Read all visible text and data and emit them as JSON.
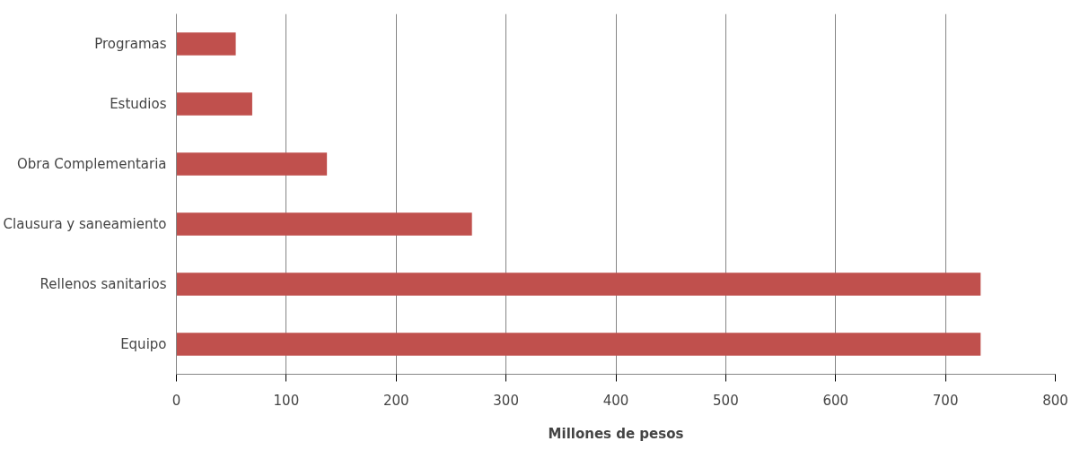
{
  "chart_data": {
    "type": "bar",
    "orientation": "horizontal",
    "xlabel": "Millones de pesos",
    "categories": [
      "Programas",
      "Estudios",
      "Obra Complementaria",
      "Clausura y saneamiento",
      "Rellenos sanitarios",
      "Equipo"
    ],
    "values": [
      54,
      69,
      137,
      269,
      732,
      732
    ],
    "color": "#c0504d",
    "xlim": [
      0,
      800
    ],
    "xticks": [
      0,
      100,
      200,
      300,
      400,
      500,
      600,
      700,
      800
    ],
    "grid": "x"
  }
}
